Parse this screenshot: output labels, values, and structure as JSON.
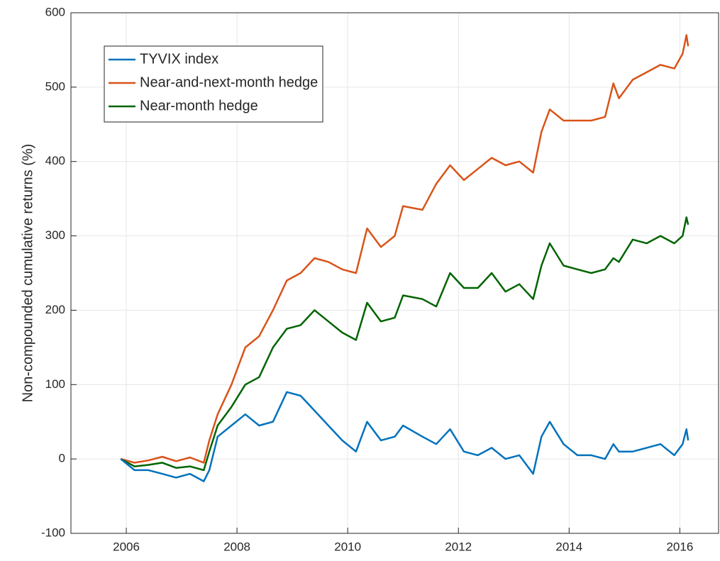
{
  "chart_data": {
    "type": "line",
    "ylabel": "Non-compounded cumulative returns (%)",
    "x": [
      2005.9,
      2006.15,
      2006.4,
      2006.65,
      2006.9,
      2007.15,
      2007.4,
      2007.5,
      2007.65,
      2007.9,
      2008.15,
      2008.4,
      2008.65,
      2008.9,
      2009.15,
      2009.4,
      2009.65,
      2009.9,
      2010.15,
      2010.35,
      2010.6,
      2010.85,
      2011.0,
      2011.35,
      2011.6,
      2011.85,
      2012.1,
      2012.35,
      2012.6,
      2012.85,
      2013.1,
      2013.35,
      2013.5,
      2013.65,
      2013.9,
      2014.15,
      2014.4,
      2014.65,
      2014.8,
      2014.9,
      2015.15,
      2015.4,
      2015.65,
      2015.9,
      2016.05,
      2016.12,
      2016.15
    ],
    "series": [
      {
        "name": "TYVIX index",
        "color": "#0072bd",
        "values": [
          0,
          -15,
          -15,
          -20,
          -25,
          -20,
          -30,
          -15,
          30,
          45,
          60,
          45,
          50,
          90,
          85,
          65,
          45,
          25,
          10,
          50,
          25,
          30,
          45,
          30,
          20,
          40,
          10,
          5,
          15,
          0,
          5,
          -20,
          30,
          50,
          20,
          5,
          5,
          0,
          20,
          10,
          10,
          15,
          20,
          5,
          20,
          40,
          25
        ]
      },
      {
        "name": "Near-and-next-month hedge",
        "color": "#d95319",
        "values": [
          0,
          -5,
          -2,
          3,
          -3,
          2,
          -5,
          25,
          60,
          100,
          150,
          165,
          200,
          240,
          250,
          270,
          265,
          255,
          250,
          310,
          285,
          300,
          340,
          335,
          370,
          395,
          375,
          390,
          405,
          395,
          400,
          385,
          440,
          470,
          455,
          455,
          455,
          460,
          505,
          485,
          510,
          520,
          530,
          525,
          545,
          570,
          555
        ]
      },
      {
        "name": "Near-month hedge",
        "color": "#006400",
        "values": [
          0,
          -10,
          -8,
          -5,
          -12,
          -10,
          -15,
          10,
          45,
          70,
          100,
          110,
          150,
          175,
          180,
          200,
          185,
          170,
          160,
          210,
          185,
          190,
          220,
          215,
          205,
          250,
          230,
          230,
          250,
          225,
          235,
          215,
          260,
          290,
          260,
          255,
          250,
          255,
          270,
          265,
          295,
          290,
          300,
          290,
          300,
          325,
          315
        ]
      }
    ],
    "xlim": [
      2005,
      2016.7
    ],
    "xticks": [
      2006,
      2008,
      2010,
      2012,
      2014,
      2016
    ],
    "ylim": [
      -100,
      600
    ],
    "yticks": [
      -100,
      0,
      100,
      200,
      300,
      400,
      500,
      600
    ],
    "grid": true,
    "legend": "upper left"
  }
}
